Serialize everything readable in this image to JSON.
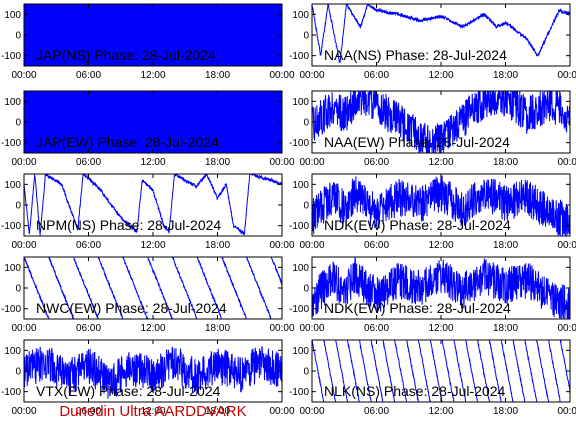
{
  "footer": {
    "credit": "Dunedin Ultra AARDDVARK"
  },
  "colors": {
    "trace": "#0000ff",
    "axes": "#000000",
    "label": "#000000",
    "credit": "#cc0000"
  },
  "chart_data": [
    {
      "type": "line",
      "title": "JAP(NS) Phase: 28-Jul-2024",
      "x_ticks": [
        "00:00",
        "06:00",
        "12:00",
        "18:00",
        "00:00"
      ],
      "y_ticks": [
        100,
        0,
        -100
      ],
      "ylim": [
        -150,
        150
      ],
      "series": [
        {
          "pattern": "saturated",
          "points": [
            [
              0,
              0
            ],
            [
              24,
              0
            ]
          ]
        }
      ]
    },
    {
      "type": "line",
      "title": "NAA(NS) Phase: 28-Jul-2024",
      "x_ticks": [
        "00:00",
        "06:00",
        "12:00",
        "18:00",
        "00:00"
      ],
      "y_ticks": [
        100,
        0,
        -100
      ],
      "ylim": [
        -150,
        150
      ],
      "series": [
        {
          "pattern": "wraps",
          "points": [
            [
              0,
              150
            ],
            [
              0.8,
              -100
            ],
            [
              1.5,
              150
            ],
            [
              2.6,
              -140
            ],
            [
              3.2,
              150
            ],
            [
              4.5,
              40
            ],
            [
              5.2,
              150
            ],
            [
              6,
              120
            ],
            [
              8,
              100
            ],
            [
              10,
              70
            ],
            [
              12,
              90
            ],
            [
              14,
              40
            ],
            [
              16,
              100
            ],
            [
              17.2,
              40
            ],
            [
              18,
              60
            ],
            [
              20,
              -20
            ],
            [
              21,
              -100
            ],
            [
              23,
              120
            ],
            [
              24,
              100
            ]
          ]
        }
      ]
    },
    {
      "type": "line",
      "title": "JAP(EW) Phase: 28-Jul-2024",
      "x_ticks": [
        "00:00",
        "06:00",
        "12:00",
        "18:00",
        "00:00"
      ],
      "y_ticks": [
        100,
        0,
        -100
      ],
      "ylim": [
        -150,
        150
      ],
      "series": [
        {
          "pattern": "saturated",
          "points": [
            [
              0,
              0
            ],
            [
              24,
              0
            ]
          ]
        }
      ]
    },
    {
      "type": "line",
      "title": "NAA(EW) Phase: 28-Jul-2024",
      "x_ticks": [
        "00:00",
        "06:00",
        "12:00",
        "18:00",
        "00:00"
      ],
      "y_ticks": [
        100,
        0,
        -100
      ],
      "ylim": [
        -150,
        150
      ],
      "series": [
        {
          "pattern": "noisy",
          "points": [
            [
              0,
              -20
            ],
            [
              1,
              30
            ],
            [
              2,
              80
            ],
            [
              3,
              30
            ],
            [
              4,
              100
            ],
            [
              5,
              120
            ],
            [
              6,
              90
            ],
            [
              7,
              40
            ],
            [
              8,
              10
            ],
            [
              9,
              -40
            ],
            [
              10,
              -80
            ],
            [
              11,
              -110
            ],
            [
              12,
              -90
            ],
            [
              13,
              -40
            ],
            [
              14,
              10
            ],
            [
              15,
              60
            ],
            [
              16,
              100
            ],
            [
              17,
              120
            ],
            [
              18,
              110
            ],
            [
              19,
              80
            ],
            [
              20,
              30
            ],
            [
              21,
              60
            ],
            [
              22,
              90
            ],
            [
              23,
              60
            ],
            [
              24,
              20
            ]
          ]
        }
      ]
    },
    {
      "type": "line",
      "title": "NPM(NS) Phase: 28-Jul-2024",
      "x_ticks": [
        "00:00",
        "06:00",
        "12:00",
        "18:00",
        "00:00"
      ],
      "y_ticks": [
        100,
        0,
        -100
      ],
      "ylim": [
        -150,
        150
      ],
      "series": [
        {
          "pattern": "wraps",
          "points": [
            [
              0,
              100
            ],
            [
              0.5,
              -140
            ],
            [
              1,
              150
            ],
            [
              1.5,
              -150
            ],
            [
              2,
              150
            ],
            [
              3.5,
              100
            ],
            [
              5,
              -120
            ],
            [
              5.5,
              150
            ],
            [
              7,
              80
            ],
            [
              9,
              -60
            ],
            [
              10.5,
              -130
            ],
            [
              11,
              120
            ],
            [
              12,
              70
            ],
            [
              13,
              -100
            ],
            [
              13.5,
              -130
            ],
            [
              14,
              150
            ],
            [
              16,
              90
            ],
            [
              17,
              150
            ],
            [
              18,
              30
            ],
            [
              18.8,
              100
            ],
            [
              19.5,
              -100
            ],
            [
              20.5,
              -140
            ],
            [
              21,
              150
            ],
            [
              23,
              120
            ],
            [
              24,
              100
            ]
          ]
        }
      ]
    },
    {
      "type": "line",
      "title": "NDK(EW) Phase: 28-Jul-2024",
      "x_ticks": [
        "00:00",
        "06:00",
        "12:00",
        "18:00",
        "00:00"
      ],
      "y_ticks": [
        100,
        0,
        -100
      ],
      "ylim": [
        -150,
        150
      ],
      "series": [
        {
          "pattern": "noisy",
          "points": [
            [
              0,
              -60
            ],
            [
              2,
              50
            ],
            [
              3,
              -20
            ],
            [
              4,
              60
            ],
            [
              5,
              10
            ],
            [
              6,
              -40
            ],
            [
              8,
              40
            ],
            [
              10,
              0
            ],
            [
              12,
              60
            ],
            [
              14,
              -20
            ],
            [
              16,
              60
            ],
            [
              18,
              10
            ],
            [
              20,
              40
            ],
            [
              22,
              -40
            ],
            [
              24,
              -80
            ]
          ]
        }
      ]
    },
    {
      "type": "line",
      "title": "NWC(EW) Phase: 28-Jul-2024",
      "x_ticks": [
        "00:00",
        "06:00",
        "12:00",
        "18:00",
        "00:00"
      ],
      "y_ticks": [
        100,
        0,
        -100
      ],
      "ylim": [
        -150,
        150
      ],
      "series": [
        {
          "pattern": "sawtooth",
          "period": 2.3,
          "points": [
            [
              0,
              0
            ],
            [
              24,
              0
            ]
          ]
        }
      ]
    },
    {
      "type": "line",
      "title": "NDK(EW) Phase: 28-Jul-2024",
      "x_ticks": [
        "00:00",
        "06:00",
        "12:00",
        "18:00",
        "00:00"
      ],
      "y_ticks": [
        100,
        0,
        -100
      ],
      "ylim": [
        -150,
        150
      ],
      "series": [
        {
          "pattern": "noisy",
          "points": [
            [
              0,
              -60
            ],
            [
              2,
              50
            ],
            [
              3,
              -20
            ],
            [
              4,
              60
            ],
            [
              5,
              10
            ],
            [
              6,
              -40
            ],
            [
              8,
              40
            ],
            [
              10,
              0
            ],
            [
              12,
              60
            ],
            [
              14,
              -20
            ],
            [
              16,
              60
            ],
            [
              18,
              10
            ],
            [
              20,
              40
            ],
            [
              22,
              -40
            ],
            [
              24,
              -80
            ]
          ]
        }
      ]
    },
    {
      "type": "line",
      "title": "VTX(EW) Phase: 28-Jul-2024",
      "x_ticks": [
        "00:00",
        "06:00",
        "12:00",
        "18:00",
        "00:00"
      ],
      "y_ticks": [
        100,
        0,
        -100
      ],
      "ylim": [
        -150,
        150
      ],
      "series": [
        {
          "pattern": "noisy",
          "points": [
            [
              0,
              0
            ],
            [
              2,
              50
            ],
            [
              4,
              -40
            ],
            [
              6,
              30
            ],
            [
              8,
              -60
            ],
            [
              10,
              20
            ],
            [
              12,
              -20
            ],
            [
              14,
              40
            ],
            [
              16,
              -30
            ],
            [
              18,
              30
            ],
            [
              20,
              -20
            ],
            [
              22,
              40
            ],
            [
              24,
              0
            ]
          ]
        }
      ]
    },
    {
      "type": "line",
      "title": "NLK(NS) Phase: 28-Jul-2024",
      "x_ticks": [
        "00:00",
        "06:00",
        "12:00",
        "18:00",
        "00:00"
      ],
      "y_ticks": [
        100,
        0,
        -100
      ],
      "ylim": [
        -150,
        150
      ],
      "series": [
        {
          "pattern": "sawtooth",
          "period": 1.1,
          "points": [
            [
              0,
              0
            ],
            [
              24,
              0
            ]
          ]
        }
      ]
    }
  ]
}
